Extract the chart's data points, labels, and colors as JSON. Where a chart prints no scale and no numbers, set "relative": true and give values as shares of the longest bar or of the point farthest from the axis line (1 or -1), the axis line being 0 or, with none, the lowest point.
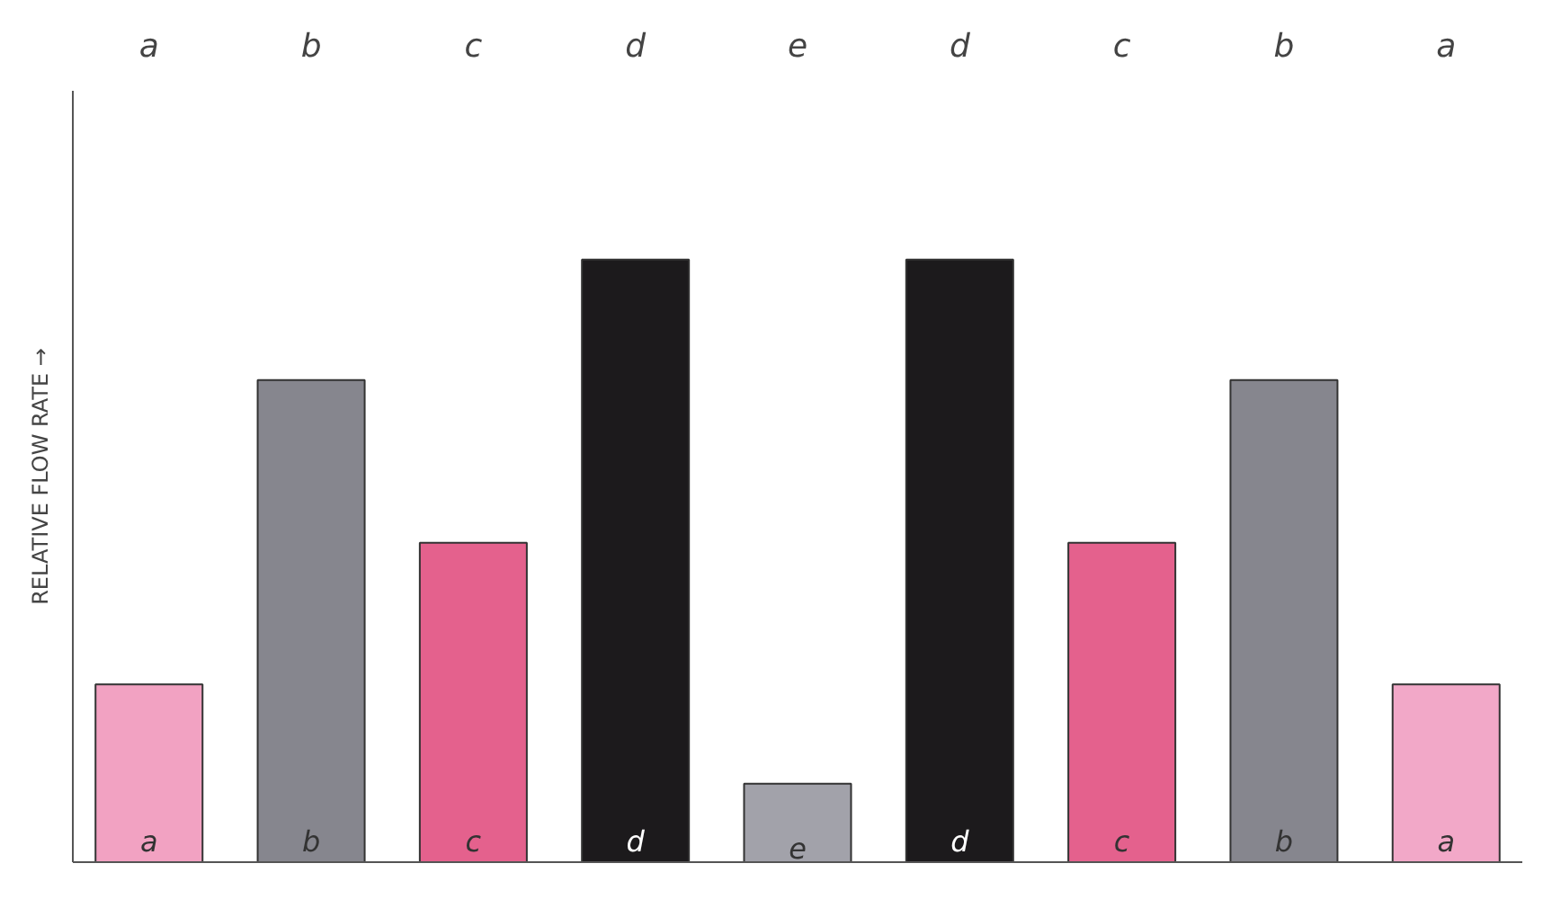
{
  "chart_data": {
    "type": "bar",
    "ylabel": "RELATIVE FLOW RATE →",
    "relative": true,
    "grid": false,
    "categories": [
      "a",
      "b",
      "c",
      "d",
      "e",
      "d",
      "c",
      "b",
      "a"
    ],
    "values": [
      0.295,
      0.8,
      0.53,
      1,
      0.13,
      1,
      0.53,
      0.8,
      0.295
    ],
    "colors": [
      "#f2a2c2",
      "#86868e",
      "#e4618d",
      "#1c1a1c",
      "#a2a2aa",
      "#1c1a1c",
      "#e4618d",
      "#86868e",
      "#f2a8c8"
    ]
  }
}
